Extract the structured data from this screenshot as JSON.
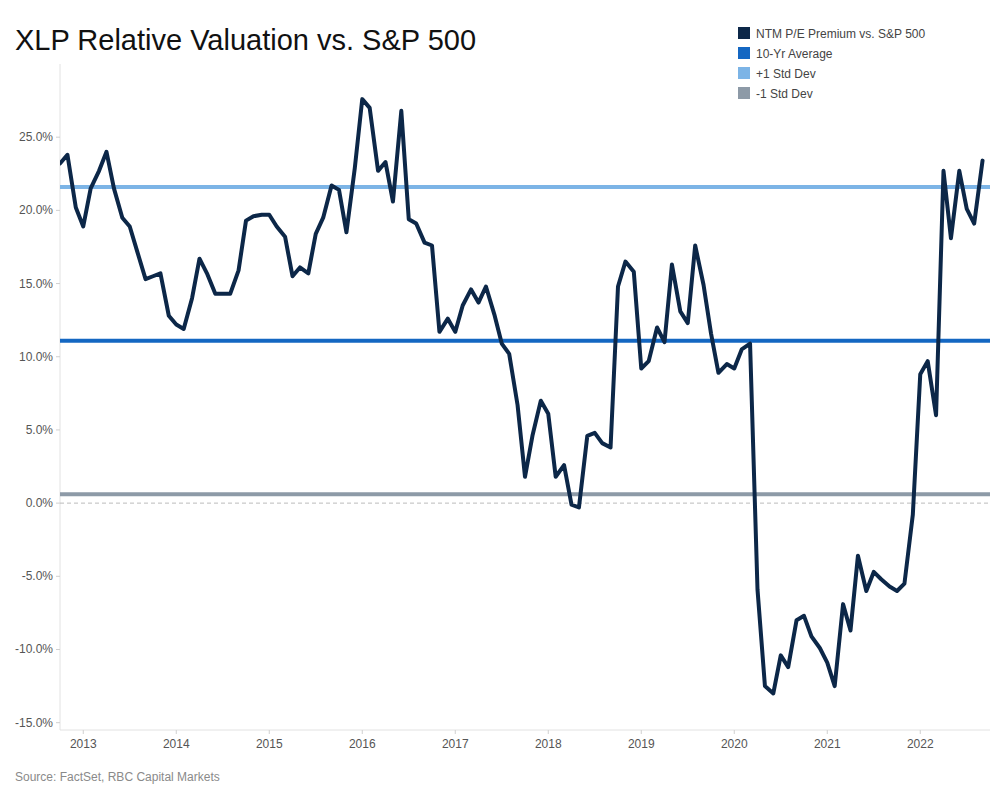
{
  "chart_data": {
    "type": "line",
    "title": "XLP Relative Valuation vs. S&P 500",
    "source": "Source: FactSet, RBC Capital Markets",
    "x": [
      2012.75,
      2012.83,
      2012.92,
      2013.0,
      2013.08,
      2013.17,
      2013.25,
      2013.33,
      2013.42,
      2013.5,
      2013.58,
      2013.67,
      2013.75,
      2013.83,
      2013.92,
      2014.0,
      2014.08,
      2014.17,
      2014.25,
      2014.33,
      2014.42,
      2014.5,
      2014.58,
      2014.67,
      2014.75,
      2014.83,
      2014.92,
      2015.0,
      2015.08,
      2015.17,
      2015.25,
      2015.33,
      2015.42,
      2015.5,
      2015.58,
      2015.67,
      2015.75,
      2015.83,
      2015.92,
      2016.0,
      2016.08,
      2016.17,
      2016.25,
      2016.33,
      2016.42,
      2016.5,
      2016.58,
      2016.67,
      2016.75,
      2016.83,
      2016.92,
      2017.0,
      2017.08,
      2017.17,
      2017.25,
      2017.33,
      2017.42,
      2017.5,
      2017.58,
      2017.67,
      2017.75,
      2017.83,
      2017.92,
      2018.0,
      2018.08,
      2018.17,
      2018.25,
      2018.33,
      2018.42,
      2018.5,
      2018.58,
      2018.67,
      2018.75,
      2018.83,
      2018.92,
      2019.0,
      2019.08,
      2019.17,
      2019.25,
      2019.33,
      2019.42,
      2019.5,
      2019.58,
      2019.67,
      2019.75,
      2019.83,
      2019.92,
      2020.0,
      2020.08,
      2020.17,
      2020.25,
      2020.33,
      2020.42,
      2020.5,
      2020.58,
      2020.67,
      2020.75,
      2020.83,
      2020.92,
      2021.0,
      2021.08,
      2021.17,
      2021.25,
      2021.33,
      2021.42,
      2021.5,
      2021.58,
      2021.67,
      2021.75,
      2021.83,
      2021.92,
      2022.0,
      2022.08,
      2022.17,
      2022.25,
      2022.33,
      2022.42,
      2022.5,
      2022.58,
      2022.67
    ],
    "series": [
      {
        "name": "NTM P/E Premium vs. S&P 500",
        "color": "#0c2748",
        "values": [
          23.2,
          23.8,
          20.2,
          18.9,
          21.5,
          22.7,
          24.0,
          21.5,
          19.5,
          18.9,
          17.2,
          15.3,
          15.5,
          15.7,
          12.8,
          12.2,
          11.9,
          14.0,
          16.7,
          15.7,
          14.3,
          14.3,
          14.3,
          15.9,
          19.3,
          19.6,
          19.7,
          19.7,
          18.9,
          18.2,
          15.5,
          16.1,
          15.7,
          18.4,
          19.5,
          21.7,
          21.4,
          18.5,
          22.9,
          27.6,
          27.0,
          22.7,
          23.3,
          20.6,
          26.8,
          19.4,
          19.1,
          17.8,
          17.6,
          11.7,
          12.6,
          11.7,
          13.5,
          14.6,
          13.7,
          14.8,
          12.9,
          10.9,
          10.2,
          6.7,
          1.8,
          4.6,
          7.0,
          6.1,
          1.8,
          2.6,
          -0.1,
          -0.3,
          4.6,
          4.8,
          4.1,
          3.8,
          14.8,
          16.5,
          15.8,
          9.2,
          9.7,
          12.0,
          11.0,
          16.3,
          13.1,
          12.3,
          17.6,
          14.9,
          11.6,
          8.9,
          9.5,
          9.2,
          10.5,
          10.9,
          -5.9,
          -12.5,
          -13.0,
          -10.4,
          -11.2,
          -8.0,
          -7.7,
          -9.1,
          -9.9,
          -10.9,
          -12.5,
          -6.9,
          -8.7,
          -3.6,
          -6.0,
          -4.7,
          -5.2,
          -5.7,
          -6.0,
          -5.5,
          -0.8,
          8.8,
          9.7,
          6.0,
          22.7,
          18.1,
          22.7,
          20.1,
          19.1,
          23.4
        ]
      }
    ],
    "reference_lines": [
      {
        "name": "10-Yr Average",
        "color": "#1467c2",
        "value": 11.1
      },
      {
        "name": "+1 Std Dev",
        "color": "#7cb4e6",
        "value": 21.6
      },
      {
        "name": "-1 Std Dev",
        "color": "#8d9aa7",
        "value": 0.6
      }
    ],
    "xlim": [
      2012.75,
      2022.75
    ],
    "xticks": [
      2013,
      2014,
      2015,
      2016,
      2017,
      2018,
      2019,
      2020,
      2021,
      2022
    ],
    "ylim": [
      -15.5,
      30
    ],
    "yticks": [
      {
        "value": -15,
        "label": "-15.0%"
      },
      {
        "value": -10,
        "label": "-10.0%"
      },
      {
        "value": -5,
        "label": "-5.0%"
      },
      {
        "value": 0,
        "label": "0.0%"
      },
      {
        "value": 5,
        "label": "5.0%"
      },
      {
        "value": 10,
        "label": "10.0%"
      },
      {
        "value": 15,
        "label": "15.0%"
      },
      {
        "value": 20,
        "label": "20.0%"
      },
      {
        "value": 25,
        "label": "25.0%"
      }
    ],
    "grid": false,
    "legend": "top-right"
  }
}
